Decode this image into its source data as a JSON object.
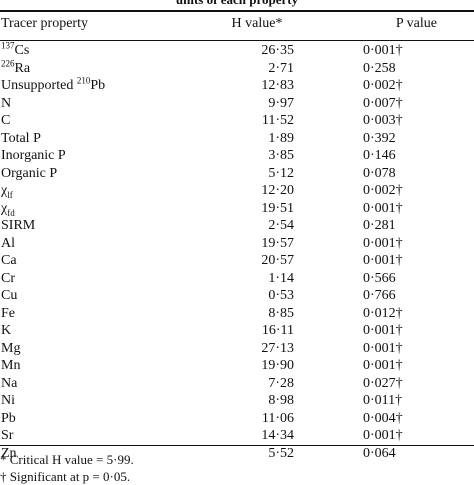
{
  "caption": "units of each property",
  "table": {
    "headers": {
      "property": "Tracer property",
      "h_value": "H value*",
      "p_value": "P value"
    },
    "rows": [
      {
        "prop_sup": "137",
        "prop": "Cs",
        "h": "26·35",
        "p": "0·001†"
      },
      {
        "prop_sup": "226",
        "prop": "Ra",
        "h": "2·71",
        "p": "0·258"
      },
      {
        "prop_pre": "Unsupported ",
        "prop_sup": "210",
        "prop": "Pb",
        "h": "12·83",
        "p": "0·002†"
      },
      {
        "prop": "N",
        "h": "9·97",
        "p": "0·007†"
      },
      {
        "prop": "C",
        "h": "11·52",
        "p": "0·003†"
      },
      {
        "prop": "Total P",
        "h": "1·89",
        "p": "0·392"
      },
      {
        "prop": "Inorganic P",
        "h": "3·85",
        "p": "0·146"
      },
      {
        "prop": "Organic P",
        "h": "5·12",
        "p": "0·078"
      },
      {
        "prop": "χ",
        "prop_sub": "lf",
        "h": "12·20",
        "p": "0·002†"
      },
      {
        "prop": "χ",
        "prop_sub": "fd",
        "h": "19·51",
        "p": "0·001†"
      },
      {
        "prop": "SIRM",
        "h": "2·54",
        "p": "0·281"
      },
      {
        "prop": "Al",
        "h": "19·57",
        "p": "0·001†"
      },
      {
        "prop": "Ca",
        "h": "20·57",
        "p": "0·001†"
      },
      {
        "prop": "Cr",
        "h": "1·14",
        "p": "0·566"
      },
      {
        "prop": "Cu",
        "h": "0·53",
        "p": "0·766"
      },
      {
        "prop": "Fe",
        "h": "8·85",
        "p": "0·012†"
      },
      {
        "prop": "K",
        "h": "16·11",
        "p": "0·001†"
      },
      {
        "prop": "Mg",
        "h": "27·13",
        "p": "0·001†"
      },
      {
        "prop": "Mn",
        "h": "19·90",
        "p": "0·001†"
      },
      {
        "prop": "Na",
        "h": "7·28",
        "p": "0·027†"
      },
      {
        "prop": "Ni",
        "h": "8·98",
        "p": "0·011†"
      },
      {
        "prop": "Pb",
        "h": "11·06",
        "p": "0·004†"
      },
      {
        "prop": "Sr",
        "h": "14·34",
        "p": "0·001†"
      },
      {
        "prop": "Zn",
        "h": "5·52",
        "p": "0·064"
      }
    ]
  },
  "footnotes": {
    "critical": "* Critical H value = 5·99.",
    "significant": "† Significant at p = 0·05."
  }
}
